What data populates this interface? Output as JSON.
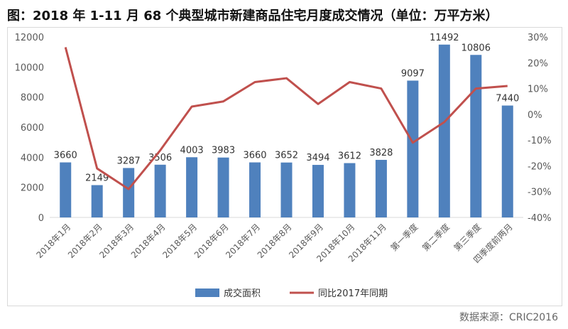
{
  "title": "图：2018 年 1-11 月 68 个典型城市新建商品住宅月度成交情况（单位：万平方米）",
  "source": "数据来源：CRIC2016",
  "colors": {
    "bar": "#4f81bd",
    "line": "#c0504d",
    "axis_text": "#595959",
    "grid": "#d9d9d9"
  },
  "chart_data": {
    "type": "bar+line",
    "categories": [
      "2018年1月",
      "2018年2月",
      "2018年3月",
      "2018年4月",
      "2018年5月",
      "2018年6月",
      "2018年7月",
      "2018年8月",
      "2018年9月",
      "2018年10月",
      "2018年11月",
      "第一季度",
      "第二季度",
      "第三季度",
      "四季度前两月"
    ],
    "series": [
      {
        "name": "成交面积",
        "type": "bar",
        "axis": "left",
        "values": [
          3660,
          2149,
          3287,
          3506,
          4003,
          3983,
          3660,
          3652,
          3494,
          3612,
          3828,
          9097,
          11492,
          10806,
          7440
        ],
        "labels": [
          "3660",
          "2149",
          "3287",
          "3506",
          "4003",
          "3983",
          "3660",
          "3652",
          "3494",
          "3612",
          "3828",
          "9097",
          "11492",
          "10806",
          "7440"
        ]
      },
      {
        "name": "同比2017年同期",
        "type": "line",
        "axis": "right",
        "values": [
          26,
          -21,
          -29,
          -14,
          3,
          5,
          12.5,
          14,
          4,
          12.5,
          10,
          -11,
          -3,
          10,
          11
        ]
      }
    ],
    "y_left": {
      "min": 0,
      "max": 12000,
      "ticks": [
        "0",
        "2000",
        "4000",
        "6000",
        "8000",
        "10000",
        "12000"
      ]
    },
    "y_right": {
      "min": -40,
      "max": 30,
      "ticks": [
        "-40%",
        "-30%",
        "-20%",
        "-10%",
        "0%",
        "10%",
        "20%",
        "30%"
      ]
    },
    "grid": false,
    "legend": "bottom"
  }
}
